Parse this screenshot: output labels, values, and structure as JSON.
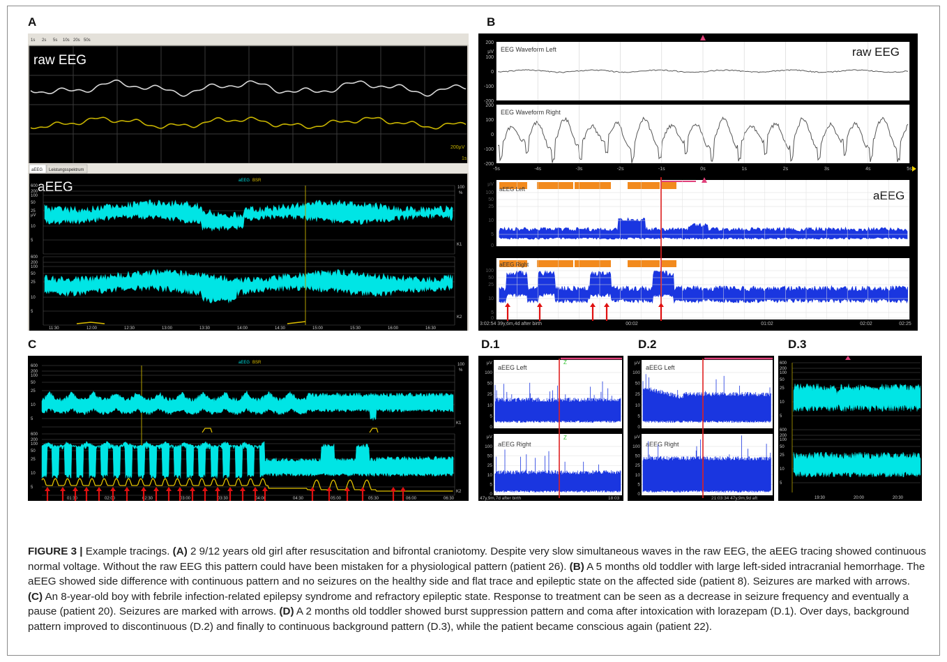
{
  "figure": {
    "panel_labels": {
      "A": "A",
      "B": "B",
      "C": "C",
      "D1": "D.1",
      "D2": "D.2",
      "D3": "D.3"
    },
    "panelA": {
      "toolbar_buttons": [
        "1s",
        "2s",
        "5s",
        "10s",
        "20s",
        "50s"
      ],
      "raw_label": "raw EEG",
      "scale_label": "200µV",
      "time_label": "1s",
      "tabs": [
        "aEEG",
        "Leistungsspektrum"
      ],
      "aeeg_label": "aEEG",
      "legend_aeeg": "aEEG",
      "legend_bsr": "BSR",
      "y_ticks": [
        "600",
        "200",
        "100",
        "50",
        "25",
        "10",
        "5"
      ],
      "y_unit": "µV",
      "pct_top": "100",
      "pct_unit": "%",
      "channel1": "K1",
      "channel2": "K2",
      "x_ticks": [
        "11:30",
        "12:00",
        "12:30",
        "13:00",
        "13:30",
        "14:00",
        "14:30",
        "15:00",
        "15:30",
        "16:00",
        "16:30"
      ]
    },
    "panelB": {
      "left_title": "EEG Waveform Left",
      "right_title": "EEG Waveform Right",
      "raw_label": "raw EEG",
      "y_ticks": [
        "200",
        "100",
        "0",
        "-100",
        "-200"
      ],
      "y_unit": "µV",
      "x_ticks": [
        "-5s",
        "-4s",
        "-3s",
        "-2s",
        "-1s",
        "0s",
        "1s",
        "2s",
        "3s",
        "4s",
        "5s"
      ],
      "aeeg_left_title": "aEEG Left",
      "aeeg_right_title": "aEEG Right",
      "aeeg_label": "aEEG",
      "aeeg_ticks": [
        "100",
        "50",
        "25",
        "10",
        "5",
        "0"
      ],
      "bottom_left": "3:02:54 39y,6m,4d after birth",
      "bottom_ticks": [
        "00:02",
        "01:02",
        "02:02",
        "02:25"
      ]
    },
    "panelC": {
      "legend_aeeg": "aEEG",
      "legend_bsr": "BSR",
      "y_ticks": [
        "600",
        "200",
        "100",
        "50",
        "25",
        "10",
        "5"
      ],
      "pct_top": "100",
      "pct_unit": "%",
      "channel1": "K1",
      "channel2": "K2",
      "x_ticks": [
        "01:30",
        "02:00",
        "02:30",
        "03:00",
        "03:30",
        "04:00",
        "04:30",
        "05:00",
        "05:30",
        "06:00",
        "06:30"
      ]
    },
    "panelD1": {
      "left_title": "aEEG Left",
      "right_title": "aEEG Right",
      "y_unit": "µV",
      "y_ticks": [
        "100",
        "50",
        "25",
        "10",
        "5",
        "0"
      ],
      "bottom_left": "47y,9m,7d after birth",
      "bottom_right": "18:03"
    },
    "panelD2": {
      "left_title": "aEEG Left",
      "right_title": "aEEG Right",
      "y_unit": "µV",
      "y_ticks": [
        "100",
        "50",
        "25",
        "10",
        "5",
        "0"
      ],
      "bottom_right": "21:03:34 47y,9m,9d aft"
    },
    "panelD3": {
      "y_ticks": [
        "600",
        "200",
        "100",
        "50",
        "25",
        "10",
        "5"
      ],
      "x_ticks": [
        "19:30",
        "20:00",
        "20:30"
      ]
    },
    "caption": {
      "title": "FIGURE 3 |",
      "intro": " Example tracings. ",
      "a_label": "(A)",
      "a_text": " 2 9/12 years old girl after resuscitation and bifrontal craniotomy. Despite very slow simultaneous waves in the raw EEG, the aEEG tracing showed continuous normal voltage. Without the raw EEG this pattern could have been mistaken for a physiological pattern (patient 26). ",
      "b_label": "(B)",
      "b_text": " A 5 months old toddler with large left-sided intracranial hemorrhage. The aEEG showed side difference with continuous pattern and no seizures on the healthy side and flat trace and epileptic state on the affected side (patient 8). Seizures are marked with arrows. ",
      "c_label": "(C)",
      "c_text": " An 8-year-old boy with febrile infection-related epilepsy syndrome and refractory epileptic state. Response to treatment can be seen as a decrease in seizure frequency and eventually a pause (patient 20). Seizures are marked with arrows. ",
      "d_label": "(D)",
      "d_text": " A 2 months old toddler showed burst suppression pattern and coma after intoxication with lorazepam (D.1). Over days, background pattern improved to discontinuous (D.2) and finally to continuous background pattern (D.3), while the patient became conscious again (patient 22)."
    }
  }
}
